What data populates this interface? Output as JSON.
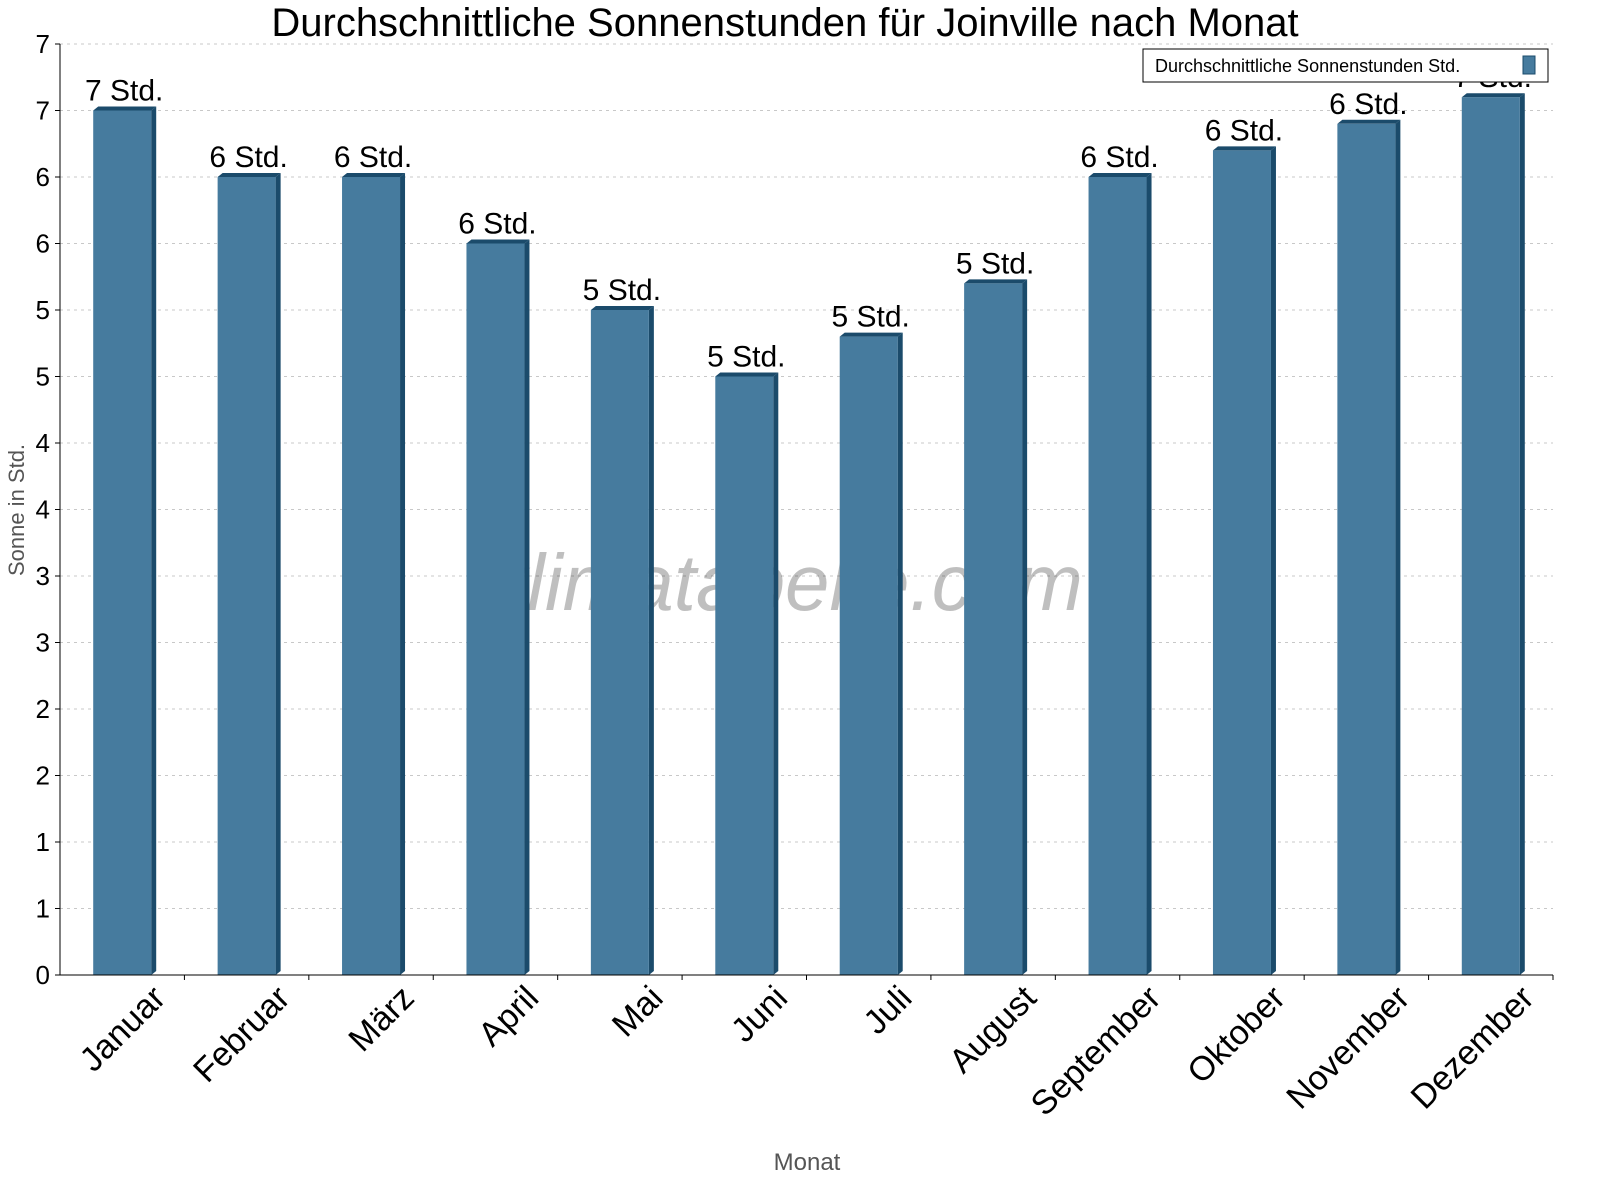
{
  "chart_data": {
    "type": "bar",
    "title": "Durchschnittliche Sonnenstunden für Joinville nach Monat",
    "xlabel": "Monat",
    "ylabel": "Sonne in Std.",
    "ylim": [
      0,
      7
    ],
    "y_tick_values": [
      0,
      0.5,
      1,
      1.5,
      2,
      2.5,
      3,
      3.5,
      4,
      4.5,
      5,
      5.5,
      6,
      6.5,
      7
    ],
    "y_tick_labels": [
      "0",
      "1",
      "1",
      "2",
      "2",
      "3",
      "3",
      "4",
      "4",
      "5",
      "5",
      "6",
      "6",
      "7",
      "7"
    ],
    "grid": true,
    "legend_position": "top-right",
    "categories": [
      "Januar",
      "Februar",
      "März",
      "April",
      "Mai",
      "Juni",
      "Juli",
      "August",
      "September",
      "Oktober",
      "November",
      "Dezember"
    ],
    "series": [
      {
        "name": "Durchschnittliche Sonnenstunden Std.",
        "values": [
          6.5,
          6.0,
          6.0,
          5.5,
          5.0,
          4.5,
          4.8,
          5.2,
          6.0,
          6.2,
          6.4,
          6.6
        ],
        "labels": [
          "7 Std.",
          "6 Std.",
          "6 Std.",
          "6 Std.",
          "5 Std.",
          "5 Std.",
          "5 Std.",
          "5 Std.",
          "6 Std.",
          "6 Std.",
          "6 Std.",
          "7 Std."
        ]
      }
    ],
    "colors": {
      "bar": "#467b9e",
      "bar_edge": "#1b4b6b"
    },
    "watermark": "klimatabelle.com"
  }
}
